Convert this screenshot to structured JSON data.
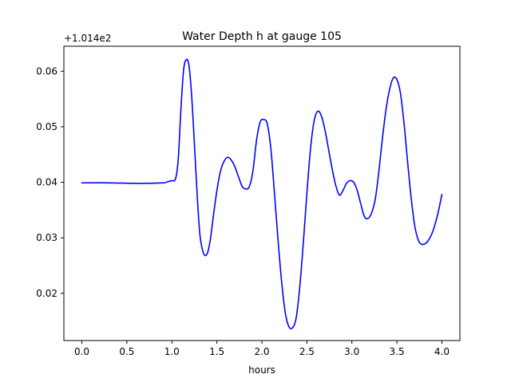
{
  "chart_data": {
    "type": "line",
    "title": "Water Depth h at gauge 105",
    "xlabel": "hours",
    "ylabel": "",
    "offset_label": "+1.014e2",
    "xlim": [
      -0.2,
      4.2
    ],
    "ylim": [
      0.0115,
      0.0645
    ],
    "x_ticks": [
      0.0,
      0.5,
      1.0,
      1.5,
      2.0,
      2.5,
      3.0,
      3.5,
      4.0
    ],
    "x_tick_labels": [
      "0.0",
      "0.5",
      "1.0",
      "1.5",
      "2.0",
      "2.5",
      "3.0",
      "3.5",
      "4.0"
    ],
    "y_ticks": [
      0.02,
      0.03,
      0.04,
      0.05,
      0.06
    ],
    "y_tick_labels": [
      "0.02",
      "0.03",
      "0.04",
      "0.05",
      "0.06"
    ],
    "grid": false,
    "legend": "none",
    "series": [
      {
        "color": "#0000ff",
        "x": [
          0.0,
          0.3,
          0.6,
          0.9,
          0.95,
          1.0,
          1.04,
          1.07,
          1.1,
          1.13,
          1.16,
          1.19,
          1.22,
          1.25,
          1.28,
          1.31,
          1.34,
          1.37,
          1.4,
          1.43,
          1.46,
          1.5,
          1.54,
          1.58,
          1.62,
          1.66,
          1.7,
          1.74,
          1.78,
          1.82,
          1.86,
          1.9,
          1.94,
          1.98,
          2.02,
          2.06,
          2.1,
          2.14,
          2.18,
          2.22,
          2.26,
          2.3,
          2.34,
          2.38,
          2.42,
          2.46,
          2.5,
          2.54,
          2.58,
          2.62,
          2.66,
          2.7,
          2.74,
          2.78,
          2.82,
          2.86,
          2.9,
          2.94,
          2.98,
          3.02,
          3.06,
          3.1,
          3.14,
          3.18,
          3.22,
          3.26,
          3.3,
          3.34,
          3.38,
          3.42,
          3.46,
          3.5,
          3.54,
          3.58,
          3.62,
          3.66,
          3.7,
          3.74,
          3.78,
          3.82,
          3.86,
          3.9,
          3.95,
          4.0
        ],
        "y": [
          0.0399,
          0.0399,
          0.0398,
          0.0399,
          0.0401,
          0.0403,
          0.0406,
          0.044,
          0.053,
          0.0602,
          0.0621,
          0.061,
          0.0555,
          0.047,
          0.038,
          0.0308,
          0.0278,
          0.0268,
          0.0275,
          0.03,
          0.0338,
          0.0385,
          0.042,
          0.0438,
          0.0445,
          0.044,
          0.0428,
          0.041,
          0.0393,
          0.0388,
          0.0392,
          0.042,
          0.0475,
          0.0508,
          0.0513,
          0.0505,
          0.046,
          0.038,
          0.0295,
          0.022,
          0.0165,
          0.014,
          0.0138,
          0.0155,
          0.021,
          0.029,
          0.038,
          0.046,
          0.051,
          0.0528,
          0.052,
          0.0495,
          0.046,
          0.0425,
          0.0395,
          0.0377,
          0.0385,
          0.0398,
          0.0403,
          0.04,
          0.0385,
          0.036,
          0.0338,
          0.0335,
          0.0345,
          0.037,
          0.042,
          0.048,
          0.0532,
          0.0568,
          0.0588,
          0.0585,
          0.056,
          0.0505,
          0.0435,
          0.037,
          0.032,
          0.0295,
          0.0288,
          0.029,
          0.0298,
          0.0312,
          0.034,
          0.0378
        ]
      }
    ]
  }
}
